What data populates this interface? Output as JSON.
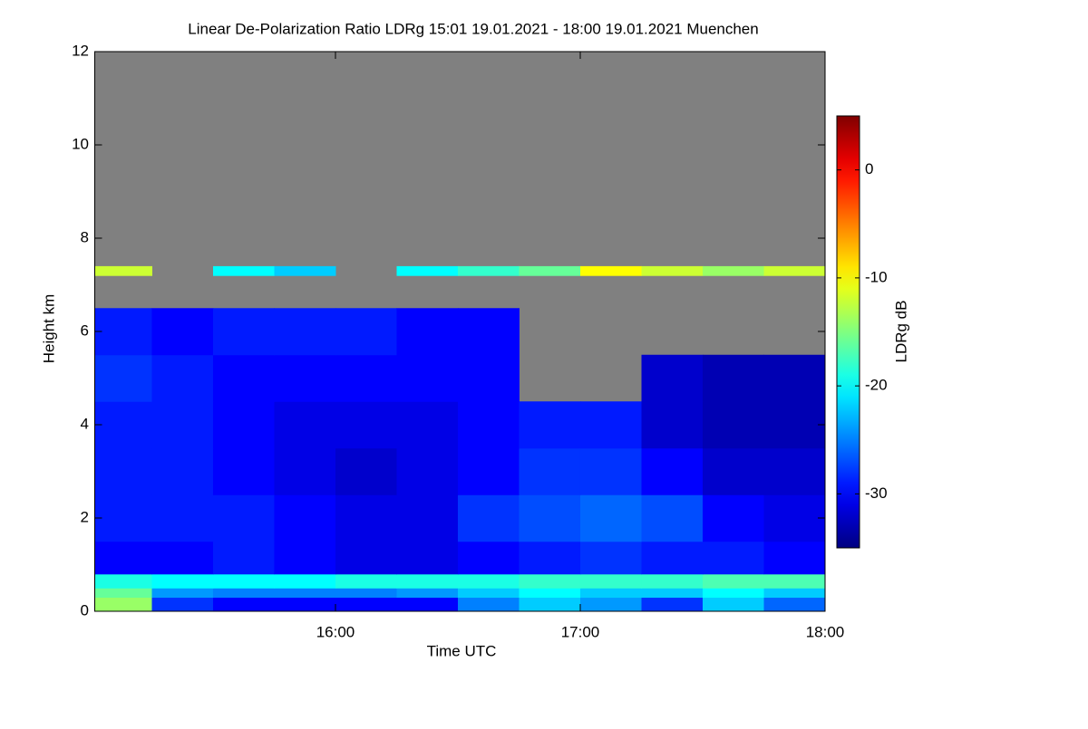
{
  "chart_data": {
    "type": "heatmap",
    "title": "Linear De-Polarization Ratio LDRg   15:01 19.01.2021 - 18:00 19.01.2021 Muenchen",
    "x_label": "Time UTC",
    "y_label": "Height km",
    "colorbar_label": "LDRg dB",
    "xlim": [
      15.0167,
      18.0
    ],
    "xticks": [
      {
        "value": 16,
        "label": "16:00"
      },
      {
        "value": 17,
        "label": "17:00"
      },
      {
        "value": 18,
        "label": "18:00"
      }
    ],
    "ylim": [
      0,
      12
    ],
    "yticks": [
      0,
      2,
      4,
      6,
      8,
      10,
      12
    ],
    "zlim": [
      -35,
      5
    ],
    "zticks": [
      -30,
      -20,
      -10,
      0
    ],
    "colormap": "jet",
    "missing_color": "#808080",
    "grid": false,
    "x_bins": [
      15.0167,
      15.25,
      15.5,
      15.75,
      16.0,
      16.25,
      16.5,
      16.75,
      17.0,
      17.25,
      17.5,
      17.75,
      18.0
    ],
    "y_bins": [
      0,
      0.3,
      0.5,
      0.8,
      1.5,
      2.5,
      3.5,
      4.5,
      5.5,
      6.5,
      7.2,
      7.4,
      12
    ],
    "values": [
      [
        -14,
        -28,
        -30,
        -30,
        -30,
        -30,
        -25,
        -22,
        -24,
        -28,
        -22,
        -26
      ],
      [
        -16,
        -24,
        -25,
        -25,
        -25,
        -24,
        -22,
        -20,
        -22,
        -22,
        -20,
        -22
      ],
      [
        -19,
        -20,
        -20,
        -20,
        -19,
        -19,
        -19,
        -18,
        -18,
        -18,
        -17,
        -17
      ],
      [
        -30,
        -30,
        -29,
        -30,
        -31,
        -31,
        -30,
        -29,
        -28,
        -29,
        -29,
        -30
      ],
      [
        -29,
        -29,
        -29,
        -30,
        -31,
        -31,
        -28,
        -27,
        -26,
        -27,
        -30,
        -31
      ],
      [
        -29,
        -29,
        -30,
        -31,
        -32,
        -31,
        -30,
        -28,
        -28,
        -30,
        -32,
        -32
      ],
      [
        -29,
        -29,
        -30,
        -31,
        -31,
        -31,
        -30,
        -29,
        -29,
        -32,
        -33,
        -33
      ],
      [
        -28,
        -29,
        -30,
        -30,
        -30,
        -30,
        -30,
        null,
        null,
        -32,
        -33,
        -33
      ],
      [
        -29,
        -30,
        -29,
        -29,
        -29,
        -30,
        -30,
        null,
        null,
        null,
        null,
        null
      ],
      [
        null,
        null,
        null,
        null,
        null,
        null,
        null,
        null,
        null,
        null,
        null,
        null
      ],
      [
        -12,
        null,
        -20,
        -22,
        null,
        -20,
        -18,
        -16,
        -10,
        -12,
        -14,
        -12
      ],
      [
        null,
        null,
        null,
        null,
        null,
        null,
        null,
        null,
        null,
        null,
        null,
        null
      ]
    ]
  }
}
